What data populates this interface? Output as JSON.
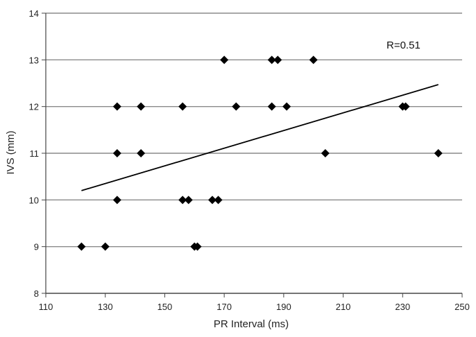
{
  "chart_data": {
    "type": "scatter",
    "xlabel": "PR Interval (ms)",
    "ylabel": "IVS (mm)",
    "xlim": [
      110,
      250
    ],
    "ylim": [
      8,
      14
    ],
    "x_ticks": [
      110,
      130,
      150,
      170,
      190,
      210,
      230,
      250
    ],
    "y_ticks": [
      8,
      9,
      10,
      11,
      12,
      13,
      14
    ],
    "grid": "horizontal",
    "annotation": "R=0.51",
    "marker": "diamond",
    "marker_color": "#000000",
    "series": [
      {
        "points": [
          [
            122,
            9
          ],
          [
            130,
            9
          ],
          [
            160,
            9
          ],
          [
            161,
            9
          ],
          [
            134,
            10
          ],
          [
            156,
            10
          ],
          [
            158,
            10
          ],
          [
            166,
            10
          ],
          [
            168,
            10
          ],
          [
            134,
            11
          ],
          [
            142,
            11
          ],
          [
            204,
            11
          ],
          [
            242,
            11
          ],
          [
            134,
            12
          ],
          [
            142,
            12
          ],
          [
            156,
            12
          ],
          [
            174,
            12
          ],
          [
            186,
            12
          ],
          [
            191,
            12
          ],
          [
            230,
            12
          ],
          [
            231,
            12
          ],
          [
            170,
            13
          ],
          [
            186,
            13
          ],
          [
            188,
            13
          ],
          [
            200,
            13
          ]
        ]
      }
    ],
    "trendline": {
      "x": [
        122,
        242
      ],
      "y": [
        10.2,
        12.47
      ]
    }
  }
}
